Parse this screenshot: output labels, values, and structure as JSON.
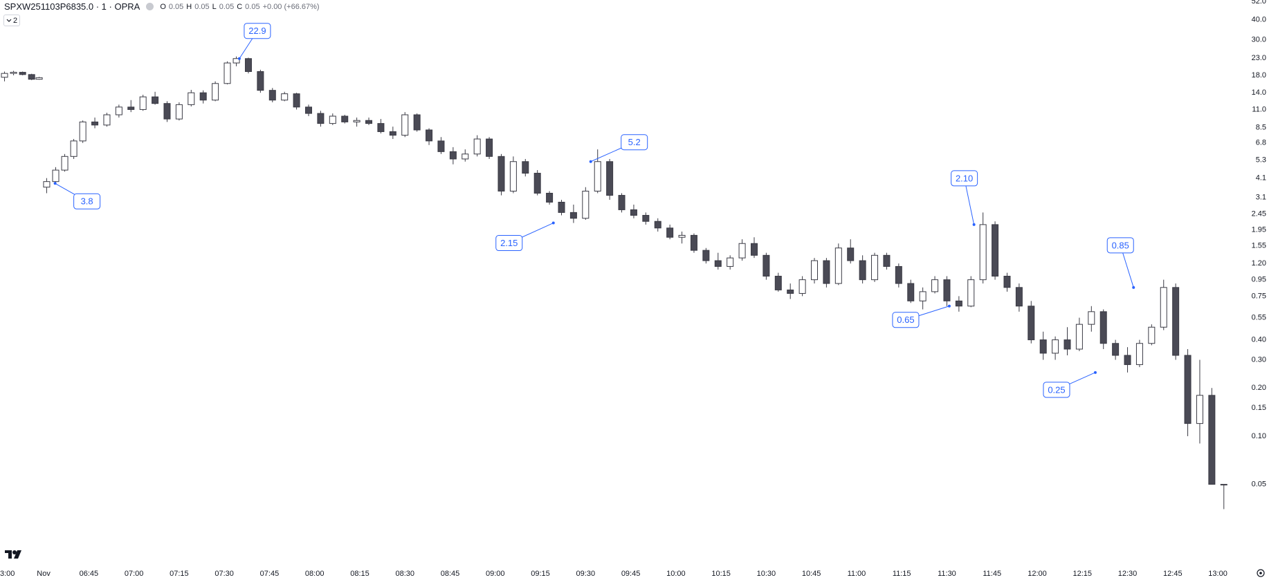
{
  "header": {
    "symbol": "SPXW251103P6835.0 · 1 · OPRA",
    "o_label": "O",
    "o_value": "0.05",
    "h_label": "H",
    "h_value": "0.05",
    "l_label": "L",
    "l_value": "0.05",
    "c_label": "C",
    "c_value": "0.05",
    "change": "+0.00 (+66.67%)",
    "toggle": "2"
  },
  "chart_data": {
    "type": "candlestick",
    "log_scale": true,
    "up_color": "#ffffff",
    "down_color": "#4a4a55",
    "border_color": "#3a3a44",
    "annotation_color": "#2962ff",
    "xlim": [
      -14.5,
      395.5
    ],
    "ylim": [
      0.0154,
      53.2
    ],
    "xticks": [
      {
        "value": -14.5,
        "label": "3:00"
      },
      {
        "value": 0,
        "label": "Nov"
      },
      {
        "value": 15,
        "label": "06:45"
      },
      {
        "value": 30,
        "label": "07:00"
      },
      {
        "value": 45,
        "label": "07:15"
      },
      {
        "value": 60,
        "label": "07:30"
      },
      {
        "value": 75,
        "label": "07:45"
      },
      {
        "value": 90,
        "label": "08:00"
      },
      {
        "value": 105,
        "label": "08:15"
      },
      {
        "value": 120,
        "label": "08:30"
      },
      {
        "value": 135,
        "label": "08:45"
      },
      {
        "value": 150,
        "label": "09:00"
      },
      {
        "value": 165,
        "label": "09:15"
      },
      {
        "value": 180,
        "label": "09:30"
      },
      {
        "value": 195,
        "label": "09:45"
      },
      {
        "value": 210,
        "label": "10:00"
      },
      {
        "value": 225,
        "label": "10:15"
      },
      {
        "value": 240,
        "label": "10:30"
      },
      {
        "value": 255,
        "label": "10:45"
      },
      {
        "value": 270,
        "label": "11:00"
      },
      {
        "value": 285,
        "label": "11:15"
      },
      {
        "value": 300,
        "label": "11:30"
      },
      {
        "value": 315,
        "label": "11:45"
      },
      {
        "value": 330,
        "label": "12:00"
      },
      {
        "value": 345,
        "label": "12:15"
      },
      {
        "value": 360,
        "label": "12:30"
      },
      {
        "value": 375,
        "label": "12:45"
      },
      {
        "value": 390,
        "label": "13:00"
      }
    ],
    "yticks": [
      {
        "value": 52,
        "label": "52.0"
      },
      {
        "value": 40,
        "label": "40.0"
      },
      {
        "value": 30,
        "label": "30.0"
      },
      {
        "value": 23,
        "label": "23.0"
      },
      {
        "value": 18,
        "label": "18.0"
      },
      {
        "value": 14,
        "label": "14.0"
      },
      {
        "value": 11,
        "label": "11.0"
      },
      8.5,
      6.8,
      5.3,
      4.1,
      3.1,
      2.45,
      1.95,
      1.55,
      {
        "value": 1.2,
        "label": "1.20"
      },
      0.95,
      0.75,
      0.55,
      {
        "value": 0.4,
        "label": "0.40"
      },
      {
        "value": 0.3,
        "label": "0.30"
      },
      {
        "value": 0.2,
        "label": "0.20"
      },
      0.15,
      {
        "value": 0.1,
        "label": "0.10"
      },
      0.05
    ],
    "candles": [
      {
        "x": -13,
        "open": 17.5,
        "high": 19,
        "low": 16.5,
        "close": 18.5
      },
      {
        "x": -10,
        "open": 18.5,
        "high": 19.2,
        "low": 18,
        "close": 18.8
      },
      {
        "x": -7,
        "open": 18.8,
        "high": 19,
        "low": 18,
        "close": 18.2
      },
      {
        "x": -4,
        "open": 18.2,
        "high": 18.4,
        "low": 16.8,
        "close": 17
      },
      {
        "x": -1.5,
        "open": 17,
        "high": 17.6,
        "low": 16.9,
        "close": 17.4
      },
      {
        "x": 1,
        "open": 3.6,
        "high": 4.1,
        "low": 3.3,
        "close": 3.9
      },
      {
        "x": 4,
        "open": 3.9,
        "high": 4.8,
        "low": 3.8,
        "close": 4.6
      },
      {
        "x": 7,
        "open": 4.6,
        "high": 5.8,
        "low": 4.5,
        "close": 5.6
      },
      {
        "x": 10,
        "open": 5.6,
        "high": 7.2,
        "low": 5.4,
        "close": 7.0
      },
      {
        "x": 13,
        "open": 7.0,
        "high": 9.4,
        "low": 6.8,
        "close": 9.2
      },
      {
        "x": 17,
        "open": 9.2,
        "high": 9.8,
        "low": 8.4,
        "close": 8.8
      },
      {
        "x": 21,
        "open": 8.8,
        "high": 10.5,
        "low": 8.6,
        "close": 10.2
      },
      {
        "x": 25,
        "open": 10.2,
        "high": 11.8,
        "low": 9.8,
        "close": 11.4
      },
      {
        "x": 29,
        "open": 11.4,
        "high": 12.6,
        "low": 10.6,
        "close": 11.0
      },
      {
        "x": 33,
        "open": 11.0,
        "high": 13.6,
        "low": 10.8,
        "close": 13.2
      },
      {
        "x": 37,
        "open": 13.2,
        "high": 14.2,
        "low": 11.8,
        "close": 12.0
      },
      {
        "x": 41,
        "open": 12.0,
        "high": 12.4,
        "low": 9.2,
        "close": 9.6
      },
      {
        "x": 45,
        "open": 9.6,
        "high": 12.2,
        "low": 9.4,
        "close": 11.8
      },
      {
        "x": 49,
        "open": 11.8,
        "high": 14.6,
        "low": 11.5,
        "close": 14.0
      },
      {
        "x": 53,
        "open": 14.0,
        "high": 14.5,
        "low": 12.0,
        "close": 12.6
      },
      {
        "x": 57,
        "open": 12.6,
        "high": 16.5,
        "low": 12.4,
        "close": 16.0
      },
      {
        "x": 61,
        "open": 16.0,
        "high": 22.0,
        "low": 15.8,
        "close": 21.5
      },
      {
        "x": 64,
        "open": 21.5,
        "high": 23.6,
        "low": 20.5,
        "close": 22.9
      },
      {
        "x": 68,
        "open": 22.9,
        "high": 23.2,
        "low": 18.5,
        "close": 19.0
      },
      {
        "x": 72,
        "open": 19.0,
        "high": 19.5,
        "low": 14.0,
        "close": 14.5
      },
      {
        "x": 76,
        "open": 14.5,
        "high": 15.0,
        "low": 12.2,
        "close": 12.6
      },
      {
        "x": 80,
        "open": 12.6,
        "high": 14.2,
        "low": 12.4,
        "close": 13.8
      },
      {
        "x": 84,
        "open": 13.8,
        "high": 14.0,
        "low": 11.0,
        "close": 11.4
      },
      {
        "x": 88,
        "open": 11.4,
        "high": 11.8,
        "low": 10.0,
        "close": 10.4
      },
      {
        "x": 92,
        "open": 10.4,
        "high": 10.8,
        "low": 8.6,
        "close": 9.0
      },
      {
        "x": 96,
        "open": 9.0,
        "high": 10.4,
        "low": 8.8,
        "close": 10.0
      },
      {
        "x": 100,
        "open": 10.0,
        "high": 10.2,
        "low": 9.0,
        "close": 9.2
      },
      {
        "x": 104,
        "open": 9.2,
        "high": 9.8,
        "low": 8.6,
        "close": 9.4
      },
      {
        "x": 108,
        "open": 9.4,
        "high": 9.8,
        "low": 8.8,
        "close": 9.0
      },
      {
        "x": 112,
        "open": 9.0,
        "high": 9.6,
        "low": 7.8,
        "close": 8.0
      },
      {
        "x": 116,
        "open": 8.0,
        "high": 8.6,
        "low": 7.2,
        "close": 7.6
      },
      {
        "x": 120,
        "open": 7.6,
        "high": 10.6,
        "low": 7.4,
        "close": 10.2
      },
      {
        "x": 124,
        "open": 10.2,
        "high": 10.4,
        "low": 8.0,
        "close": 8.2
      },
      {
        "x": 128,
        "open": 8.2,
        "high": 8.4,
        "low": 6.6,
        "close": 7.0
      },
      {
        "x": 132,
        "open": 7.0,
        "high": 7.4,
        "low": 5.8,
        "close": 6.0
      },
      {
        "x": 136,
        "open": 6.0,
        "high": 6.4,
        "low": 5.0,
        "close": 5.4
      },
      {
        "x": 140,
        "open": 5.4,
        "high": 6.2,
        "low": 5.2,
        "close": 5.8
      },
      {
        "x": 144,
        "open": 5.8,
        "high": 7.6,
        "low": 5.6,
        "close": 7.2
      },
      {
        "x": 148,
        "open": 7.2,
        "high": 7.4,
        "low": 5.4,
        "close": 5.6
      },
      {
        "x": 152,
        "open": 5.6,
        "high": 5.8,
        "low": 3.2,
        "close": 3.4
      },
      {
        "x": 156,
        "open": 3.4,
        "high": 5.6,
        "low": 3.3,
        "close": 5.2
      },
      {
        "x": 160,
        "open": 5.2,
        "high": 5.4,
        "low": 4.2,
        "close": 4.4
      },
      {
        "x": 164,
        "open": 4.4,
        "high": 4.6,
        "low": 3.2,
        "close": 3.3
      },
      {
        "x": 168,
        "open": 3.3,
        "high": 3.4,
        "low": 2.8,
        "close": 2.9
      },
      {
        "x": 172,
        "open": 2.9,
        "high": 3.0,
        "low": 2.4,
        "close": 2.5
      },
      {
        "x": 176,
        "open": 2.5,
        "high": 2.8,
        "low": 2.15,
        "close": 2.3
      },
      {
        "x": 180,
        "open": 2.3,
        "high": 3.6,
        "low": 2.25,
        "close": 3.4
      },
      {
        "x": 184,
        "open": 3.4,
        "high": 6.2,
        "low": 3.3,
        "close": 5.2
      },
      {
        "x": 188,
        "open": 5.2,
        "high": 5.4,
        "low": 3.0,
        "close": 3.2
      },
      {
        "x": 192,
        "open": 3.2,
        "high": 3.3,
        "low": 2.5,
        "close": 2.6
      },
      {
        "x": 196,
        "open": 2.6,
        "high": 2.8,
        "low": 2.3,
        "close": 2.4
      },
      {
        "x": 200,
        "open": 2.4,
        "high": 2.5,
        "low": 2.1,
        "close": 2.2
      },
      {
        "x": 204,
        "open": 2.2,
        "high": 2.3,
        "low": 1.9,
        "close": 2.0
      },
      {
        "x": 208,
        "open": 2.0,
        "high": 2.1,
        "low": 1.7,
        "close": 1.75
      },
      {
        "x": 212,
        "open": 1.75,
        "high": 1.9,
        "low": 1.6,
        "close": 1.8
      },
      {
        "x": 216,
        "open": 1.8,
        "high": 1.85,
        "low": 1.4,
        "close": 1.45
      },
      {
        "x": 220,
        "open": 1.45,
        "high": 1.5,
        "low": 1.2,
        "close": 1.25
      },
      {
        "x": 224,
        "open": 1.25,
        "high": 1.4,
        "low": 1.1,
        "close": 1.15
      },
      {
        "x": 228,
        "open": 1.15,
        "high": 1.35,
        "low": 1.1,
        "close": 1.3
      },
      {
        "x": 232,
        "open": 1.3,
        "high": 1.7,
        "low": 1.25,
        "close": 1.6
      },
      {
        "x": 236,
        "open": 1.6,
        "high": 1.75,
        "low": 1.3,
        "close": 1.35
      },
      {
        "x": 240,
        "open": 1.35,
        "high": 1.4,
        "low": 0.95,
        "close": 1.0
      },
      {
        "x": 244,
        "open": 1.0,
        "high": 1.05,
        "low": 0.8,
        "close": 0.82
      },
      {
        "x": 248,
        "open": 0.82,
        "high": 0.9,
        "low": 0.72,
        "close": 0.78
      },
      {
        "x": 252,
        "open": 0.78,
        "high": 1.0,
        "low": 0.75,
        "close": 0.95
      },
      {
        "x": 256,
        "open": 0.95,
        "high": 1.3,
        "low": 0.9,
        "close": 1.25
      },
      {
        "x": 260,
        "open": 1.25,
        "high": 1.3,
        "low": 0.85,
        "close": 0.9
      },
      {
        "x": 264,
        "open": 0.9,
        "high": 1.6,
        "low": 0.88,
        "close": 1.5
      },
      {
        "x": 268,
        "open": 1.5,
        "high": 1.7,
        "low": 1.2,
        "close": 1.25
      },
      {
        "x": 272,
        "open": 1.25,
        "high": 1.35,
        "low": 0.9,
        "close": 0.95
      },
      {
        "x": 276,
        "open": 0.95,
        "high": 1.4,
        "low": 0.92,
        "close": 1.35
      },
      {
        "x": 280,
        "open": 1.35,
        "high": 1.4,
        "low": 1.1,
        "close": 1.15
      },
      {
        "x": 284,
        "open": 1.15,
        "high": 1.2,
        "low": 0.85,
        "close": 0.9
      },
      {
        "x": 288,
        "open": 0.9,
        "high": 0.95,
        "low": 0.68,
        "close": 0.7
      },
      {
        "x": 292,
        "open": 0.7,
        "high": 0.85,
        "low": 0.62,
        "close": 0.8
      },
      {
        "x": 296,
        "open": 0.8,
        "high": 1.0,
        "low": 0.78,
        "close": 0.95
      },
      {
        "x": 300,
        "open": 0.95,
        "high": 1.0,
        "low": 0.65,
        "close": 0.7
      },
      {
        "x": 304,
        "open": 0.7,
        "high": 0.75,
        "low": 0.6,
        "close": 0.65
      },
      {
        "x": 308,
        "open": 0.65,
        "high": 1.0,
        "low": 0.64,
        "close": 0.95
      },
      {
        "x": 312,
        "open": 0.95,
        "high": 2.5,
        "low": 0.9,
        "close": 2.1
      },
      {
        "x": 316,
        "open": 2.1,
        "high": 2.2,
        "low": 0.95,
        "close": 1.0
      },
      {
        "x": 320,
        "open": 1.0,
        "high": 1.05,
        "low": 0.8,
        "close": 0.85
      },
      {
        "x": 324,
        "open": 0.85,
        "high": 0.9,
        "low": 0.6,
        "close": 0.65
      },
      {
        "x": 328,
        "open": 0.65,
        "high": 0.7,
        "low": 0.38,
        "close": 0.4
      },
      {
        "x": 332,
        "open": 0.4,
        "high": 0.45,
        "low": 0.3,
        "close": 0.33
      },
      {
        "x": 336,
        "open": 0.33,
        "high": 0.42,
        "low": 0.3,
        "close": 0.4
      },
      {
        "x": 340,
        "open": 0.4,
        "high": 0.48,
        "low": 0.32,
        "close": 0.35
      },
      {
        "x": 344,
        "open": 0.35,
        "high": 0.55,
        "low": 0.34,
        "close": 0.5
      },
      {
        "x": 348,
        "open": 0.5,
        "high": 0.65,
        "low": 0.45,
        "close": 0.6
      },
      {
        "x": 352,
        "open": 0.6,
        "high": 0.62,
        "low": 0.35,
        "close": 0.38
      },
      {
        "x": 356,
        "open": 0.38,
        "high": 0.4,
        "low": 0.3,
        "close": 0.32
      },
      {
        "x": 360,
        "open": 0.32,
        "high": 0.36,
        "low": 0.25,
        "close": 0.28
      },
      {
        "x": 364,
        "open": 0.28,
        "high": 0.4,
        "low": 0.27,
        "close": 0.38
      },
      {
        "x": 368,
        "open": 0.38,
        "high": 0.5,
        "low": 0.37,
        "close": 0.48
      },
      {
        "x": 372,
        "open": 0.48,
        "high": 0.95,
        "low": 0.46,
        "close": 0.85
      },
      {
        "x": 376,
        "open": 0.85,
        "high": 0.9,
        "low": 0.3,
        "close": 0.32
      },
      {
        "x": 380,
        "open": 0.32,
        "high": 0.35,
        "low": 0.1,
        "close": 0.12
      },
      {
        "x": 384,
        "open": 0.12,
        "high": 0.3,
        "low": 0.09,
        "close": 0.18
      },
      {
        "x": 388,
        "open": 0.18,
        "high": 0.2,
        "low": 0.05,
        "close": 0.05
      },
      {
        "x": 392,
        "open": 0.05,
        "high": 0.05,
        "low": 0.035,
        "close": 0.05
      }
    ],
    "annotations": [
      {
        "x": 65,
        "value": 22.9,
        "label": "22.9"
      },
      {
        "x": 3.8,
        "value": 3.8,
        "label": "3.8"
      },
      {
        "x": 181.7,
        "value": 5.2,
        "label": "5.2"
      },
      {
        "x": 169.3,
        "value": 2.15,
        "label": "2.15"
      },
      {
        "x": 309,
        "value": 2.1,
        "label": "2.10"
      },
      {
        "x": 300.8,
        "value": 0.65,
        "label": "0.65"
      },
      {
        "x": 362,
        "value": 0.85,
        "label": "0.85"
      },
      {
        "x": 349.3,
        "value": 0.25,
        "label": "0.25"
      }
    ]
  }
}
